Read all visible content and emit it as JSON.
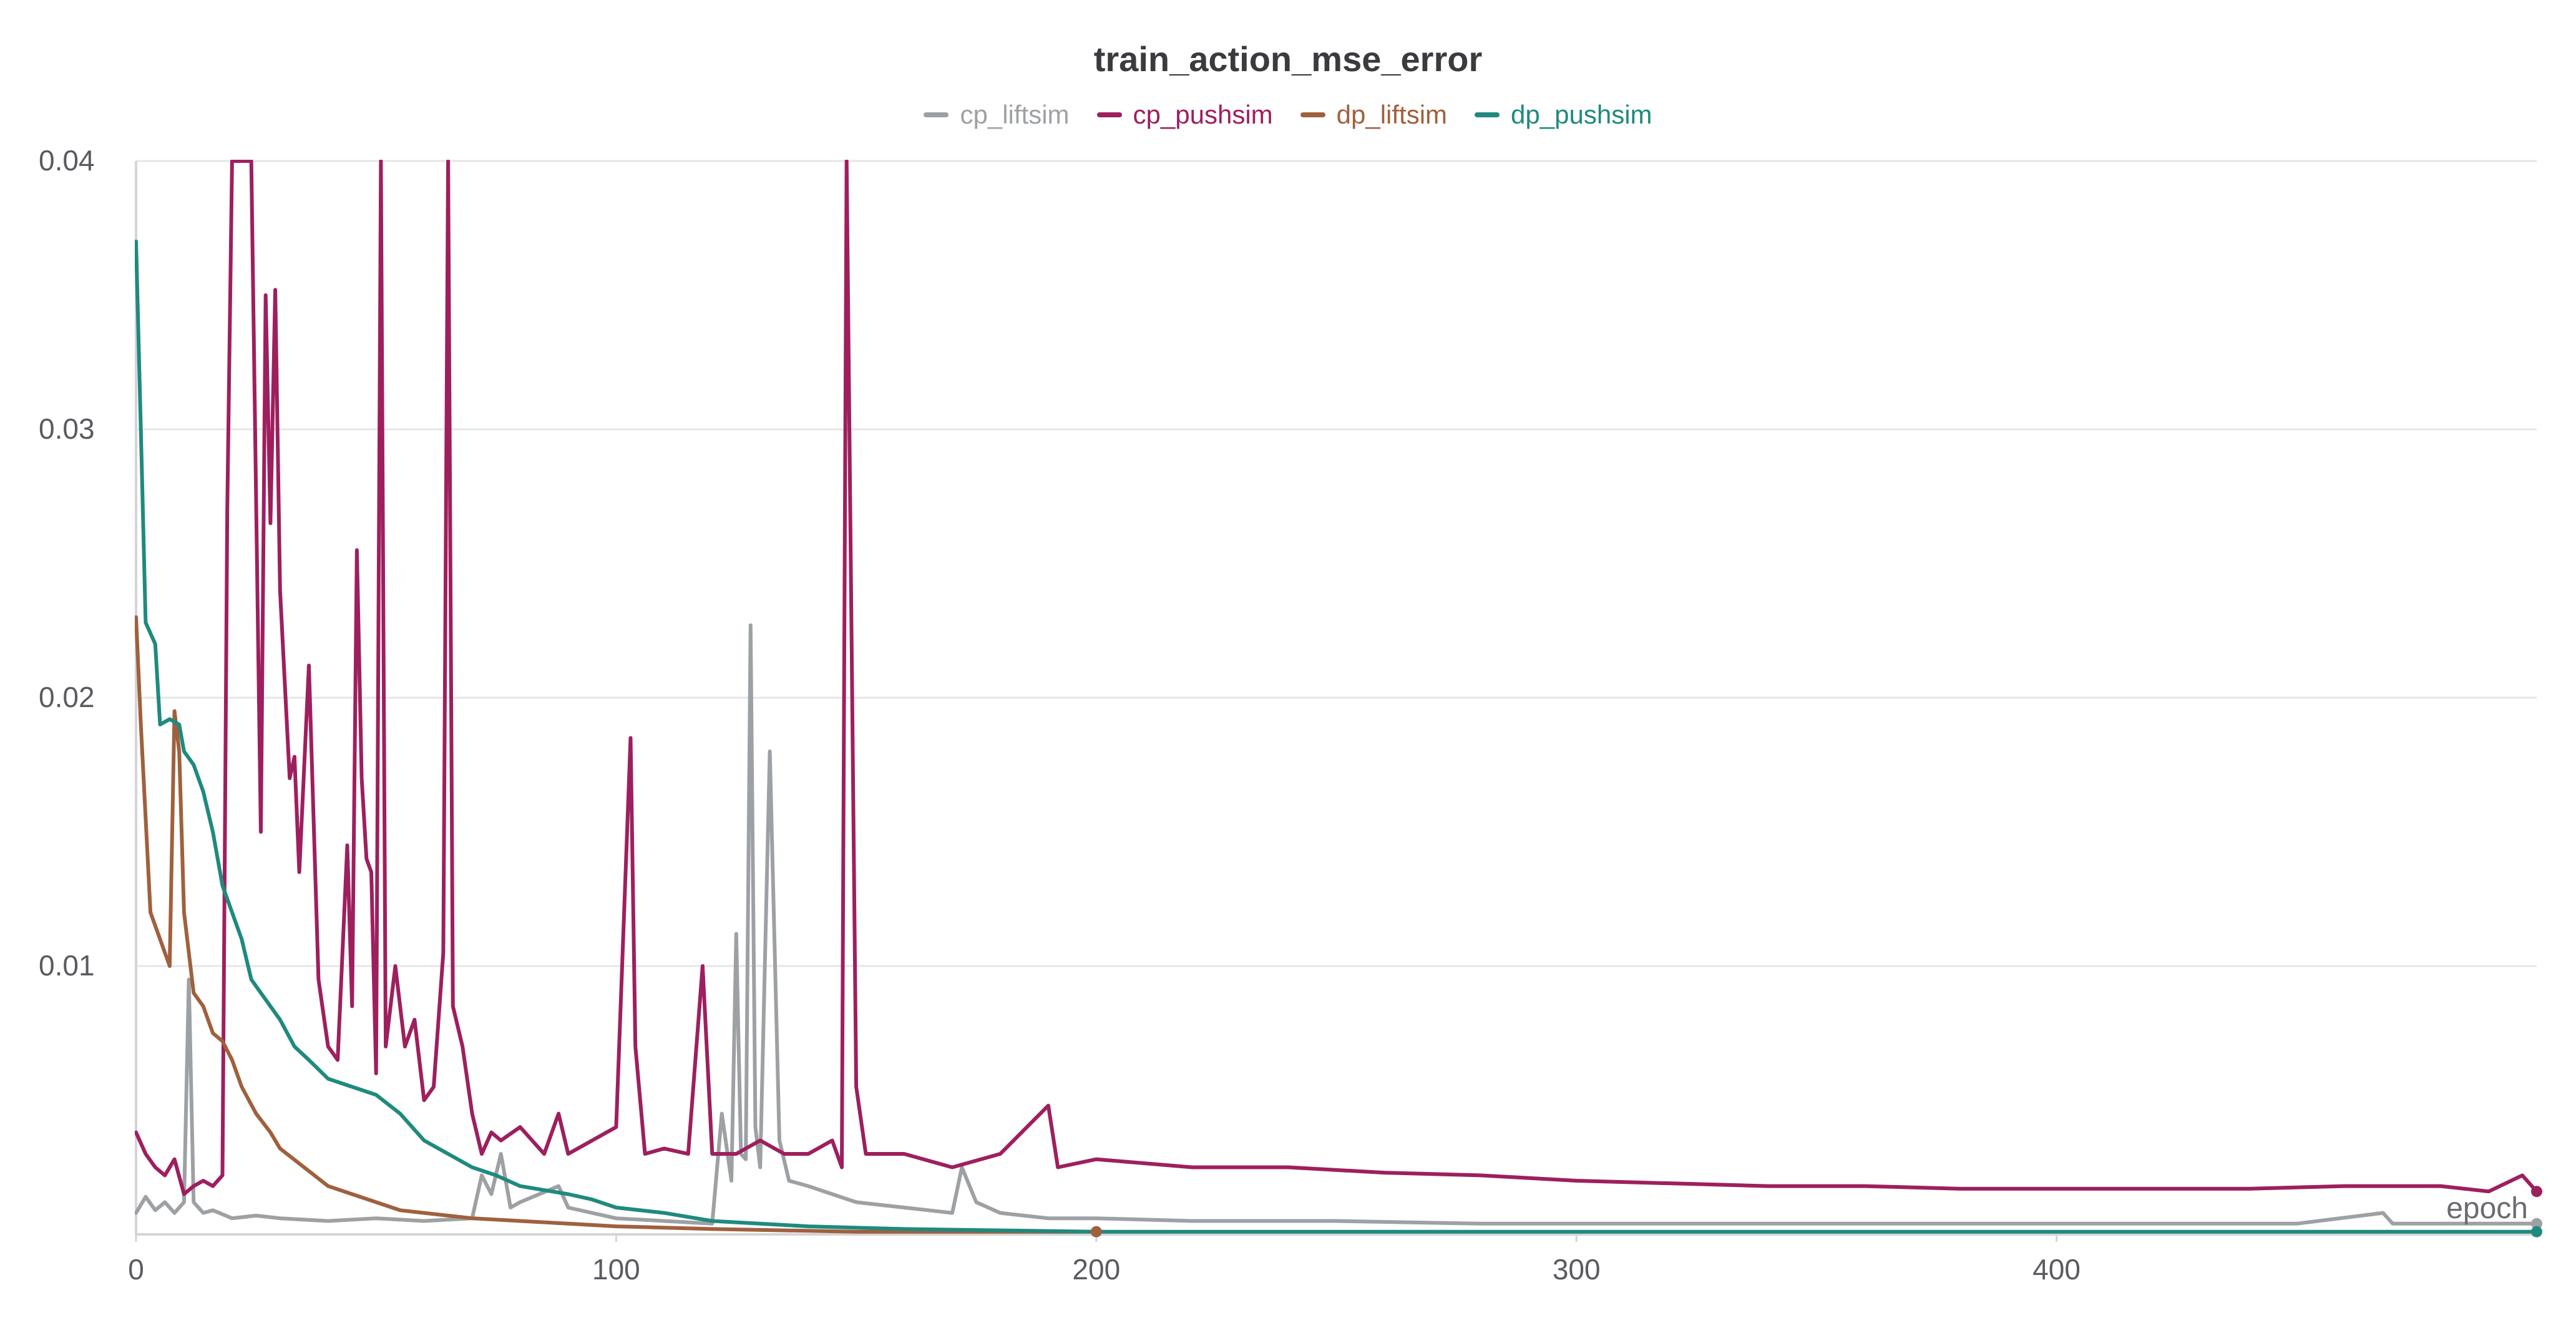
{
  "chart_data": {
    "type": "line",
    "title": "train_action_mse_error",
    "xlabel": "epoch",
    "ylabel": "",
    "xlim": [
      0,
      500
    ],
    "ylim": [
      0,
      0.04
    ],
    "x_ticks": [
      0,
      100,
      200,
      300,
      400
    ],
    "x_tick_labels": [
      "0",
      "100",
      "200",
      "300",
      "400"
    ],
    "y_ticks": [
      0.01,
      0.02,
      0.03,
      0.04
    ],
    "y_tick_labels": [
      "0.01",
      "0.02",
      "0.03",
      "0.04"
    ],
    "grid": true,
    "legend_position": "top-center",
    "series": [
      {
        "name": "cp_liftsim",
        "color": "#9ea1a4",
        "points": [
          [
            0,
            0.0008
          ],
          [
            2,
            0.0014
          ],
          [
            4,
            0.0009
          ],
          [
            6,
            0.0012
          ],
          [
            8,
            0.0008
          ],
          [
            10,
            0.0012
          ],
          [
            11,
            0.0095
          ],
          [
            12,
            0.0012
          ],
          [
            14,
            0.0008
          ],
          [
            16,
            0.0009
          ],
          [
            20,
            0.0006
          ],
          [
            25,
            0.0007
          ],
          [
            30,
            0.0006
          ],
          [
            40,
            0.0005
          ],
          [
            50,
            0.0006
          ],
          [
            60,
            0.0005
          ],
          [
            70,
            0.0006
          ],
          [
            72,
            0.0022
          ],
          [
            74,
            0.0015
          ],
          [
            76,
            0.003
          ],
          [
            78,
            0.001
          ],
          [
            80,
            0.0012
          ],
          [
            88,
            0.0018
          ],
          [
            90,
            0.001
          ],
          [
            100,
            0.0006
          ],
          [
            110,
            0.0005
          ],
          [
            120,
            0.0004
          ],
          [
            122,
            0.0045
          ],
          [
            124,
            0.002
          ],
          [
            125,
            0.0112
          ],
          [
            126,
            0.003
          ],
          [
            127,
            0.0028
          ],
          [
            128,
            0.0227
          ],
          [
            129,
            0.004
          ],
          [
            130,
            0.0025
          ],
          [
            132,
            0.018
          ],
          [
            134,
            0.0035
          ],
          [
            136,
            0.002
          ],
          [
            140,
            0.0018
          ],
          [
            145,
            0.0015
          ],
          [
            150,
            0.0012
          ],
          [
            160,
            0.001
          ],
          [
            170,
            0.0008
          ],
          [
            172,
            0.0025
          ],
          [
            175,
            0.0012
          ],
          [
            180,
            0.0008
          ],
          [
            190,
            0.0006
          ],
          [
            200,
            0.0006
          ],
          [
            220,
            0.0005
          ],
          [
            250,
            0.0005
          ],
          [
            280,
            0.0004
          ],
          [
            300,
            0.0004
          ],
          [
            350,
            0.0004
          ],
          [
            400,
            0.0004
          ],
          [
            450,
            0.0004
          ],
          [
            468,
            0.0008
          ],
          [
            470,
            0.0004
          ],
          [
            500,
            0.0004
          ]
        ]
      },
      {
        "name": "cp_pushsim",
        "color": "#9e1f5e",
        "points": [
          [
            0,
            0.0038
          ],
          [
            2,
            0.003
          ],
          [
            4,
            0.0025
          ],
          [
            6,
            0.0022
          ],
          [
            8,
            0.0028
          ],
          [
            10,
            0.0015
          ],
          [
            12,
            0.0018
          ],
          [
            14,
            0.002
          ],
          [
            16,
            0.0018
          ],
          [
            18,
            0.0022
          ],
          [
            19,
            0.027
          ],
          [
            20,
            0.04
          ],
          [
            22,
            0.04
          ],
          [
            23,
            0.04
          ],
          [
            24,
            0.04
          ],
          [
            26,
            0.015
          ],
          [
            27,
            0.035
          ],
          [
            28,
            0.0265
          ],
          [
            29,
            0.0352
          ],
          [
            30,
            0.024
          ],
          [
            32,
            0.017
          ],
          [
            33,
            0.0178
          ],
          [
            34,
            0.0135
          ],
          [
            36,
            0.0212
          ],
          [
            38,
            0.0095
          ],
          [
            40,
            0.007
          ],
          [
            42,
            0.0065
          ],
          [
            44,
            0.0145
          ],
          [
            45,
            0.0085
          ],
          [
            46,
            0.0255
          ],
          [
            47,
            0.017
          ],
          [
            48,
            0.014
          ],
          [
            49,
            0.0135
          ],
          [
            50,
            0.006
          ],
          [
            51,
            0.04
          ],
          [
            52,
            0.007
          ],
          [
            54,
            0.01
          ],
          [
            56,
            0.007
          ],
          [
            58,
            0.008
          ],
          [
            60,
            0.005
          ],
          [
            62,
            0.0055
          ],
          [
            64,
            0.0105
          ],
          [
            65,
            0.04
          ],
          [
            66,
            0.0085
          ],
          [
            68,
            0.007
          ],
          [
            70,
            0.0045
          ],
          [
            72,
            0.003
          ],
          [
            74,
            0.0038
          ],
          [
            76,
            0.0035
          ],
          [
            80,
            0.004
          ],
          [
            85,
            0.003
          ],
          [
            88,
            0.0045
          ],
          [
            90,
            0.003
          ],
          [
            95,
            0.0035
          ],
          [
            100,
            0.004
          ],
          [
            103,
            0.0185
          ],
          [
            104,
            0.007
          ],
          [
            106,
            0.003
          ],
          [
            110,
            0.0032
          ],
          [
            115,
            0.003
          ],
          [
            118,
            0.01
          ],
          [
            120,
            0.003
          ],
          [
            125,
            0.003
          ],
          [
            130,
            0.0035
          ],
          [
            135,
            0.003
          ],
          [
            140,
            0.003
          ],
          [
            145,
            0.0035
          ],
          [
            147,
            0.0025
          ],
          [
            148,
            0.04
          ],
          [
            150,
            0.0055
          ],
          [
            152,
            0.003
          ],
          [
            160,
            0.003
          ],
          [
            170,
            0.0025
          ],
          [
            180,
            0.003
          ],
          [
            190,
            0.0048
          ],
          [
            192,
            0.0025
          ],
          [
            200,
            0.0028
          ],
          [
            220,
            0.0025
          ],
          [
            240,
            0.0025
          ],
          [
            260,
            0.0023
          ],
          [
            280,
            0.0022
          ],
          [
            300,
            0.002
          ],
          [
            320,
            0.0019
          ],
          [
            340,
            0.0018
          ],
          [
            360,
            0.0018
          ],
          [
            380,
            0.0017
          ],
          [
            400,
            0.0017
          ],
          [
            420,
            0.0017
          ],
          [
            440,
            0.0017
          ],
          [
            460,
            0.0018
          ],
          [
            480,
            0.0018
          ],
          [
            490,
            0.0016
          ],
          [
            497,
            0.0022
          ],
          [
            500,
            0.0016
          ]
        ]
      },
      {
        "name": "dp_liftsim",
        "color": "#a0603e",
        "points": [
          [
            0,
            0.023
          ],
          [
            1,
            0.019
          ],
          [
            3,
            0.012
          ],
          [
            5,
            0.011
          ],
          [
            7,
            0.01
          ],
          [
            8,
            0.0195
          ],
          [
            9,
            0.018
          ],
          [
            10,
            0.012
          ],
          [
            12,
            0.009
          ],
          [
            14,
            0.0085
          ],
          [
            16,
            0.0075
          ],
          [
            18,
            0.0072
          ],
          [
            20,
            0.0065
          ],
          [
            22,
            0.0055
          ],
          [
            25,
            0.0045
          ],
          [
            28,
            0.0038
          ],
          [
            30,
            0.0032
          ],
          [
            35,
            0.0025
          ],
          [
            40,
            0.0018
          ],
          [
            45,
            0.0015
          ],
          [
            50,
            0.0012
          ],
          [
            55,
            0.0009
          ],
          [
            60,
            0.0008
          ],
          [
            70,
            0.0006
          ],
          [
            80,
            0.0005
          ],
          [
            90,
            0.0004
          ],
          [
            100,
            0.0003
          ],
          [
            120,
            0.0002
          ],
          [
            150,
            0.0001
          ],
          [
            200,
            0.0001
          ]
        ]
      },
      {
        "name": "dp_pushsim",
        "color": "#1f8a7d",
        "points": [
          [
            0,
            0.037
          ],
          [
            1,
            0.03
          ],
          [
            2,
            0.0228
          ],
          [
            4,
            0.022
          ],
          [
            5,
            0.019
          ],
          [
            7,
            0.0192
          ],
          [
            9,
            0.019
          ],
          [
            10,
            0.018
          ],
          [
            12,
            0.0175
          ],
          [
            14,
            0.0165
          ],
          [
            16,
            0.015
          ],
          [
            18,
            0.013
          ],
          [
            20,
            0.012
          ],
          [
            22,
            0.011
          ],
          [
            24,
            0.0095
          ],
          [
            26,
            0.009
          ],
          [
            28,
            0.0085
          ],
          [
            30,
            0.008
          ],
          [
            33,
            0.007
          ],
          [
            36,
            0.0065
          ],
          [
            40,
            0.0058
          ],
          [
            45,
            0.0055
          ],
          [
            50,
            0.0052
          ],
          [
            55,
            0.0045
          ],
          [
            60,
            0.0035
          ],
          [
            65,
            0.003
          ],
          [
            70,
            0.0025
          ],
          [
            75,
            0.0022
          ],
          [
            80,
            0.0018
          ],
          [
            90,
            0.0015
          ],
          [
            95,
            0.0013
          ],
          [
            100,
            0.001
          ],
          [
            110,
            0.0008
          ],
          [
            120,
            0.0005
          ],
          [
            140,
            0.0003
          ],
          [
            160,
            0.0002
          ],
          [
            200,
            0.0001
          ],
          [
            300,
            0.0001
          ],
          [
            400,
            0.0001
          ],
          [
            500,
            0.0001
          ]
        ]
      }
    ]
  }
}
